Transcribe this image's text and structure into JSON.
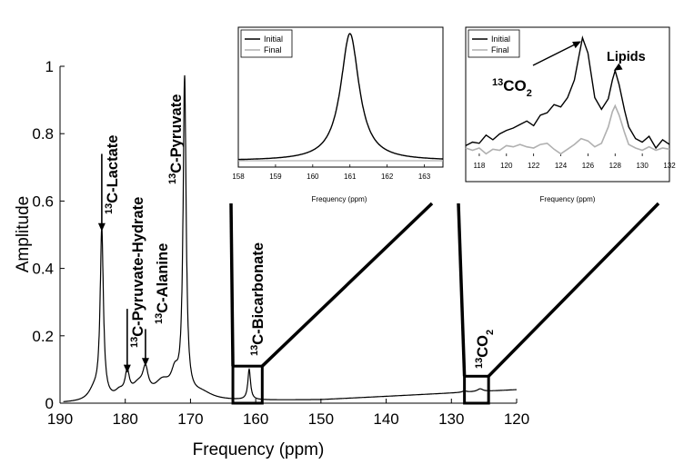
{
  "chart_data": [
    {
      "id": "main",
      "type": "line",
      "xlabel": "Frequency (ppm)",
      "ylabel": "Amplitude",
      "xlim": [
        190,
        120
      ],
      "ylim": [
        0,
        1
      ],
      "x_ticks": [
        190,
        180,
        170,
        160,
        150,
        140,
        130,
        120
      ],
      "y_ticks": [
        0,
        0.2,
        0.4,
        0.6,
        0.8,
        1
      ],
      "y_tick_labels": [
        "0",
        "0.2",
        "0.4",
        "0.6",
        "0.8",
        "1"
      ],
      "series": [
        {
          "name": "spectrum",
          "color": "#000000",
          "baseline": [
            [
              190,
              0.0
            ],
            [
              150,
              0.01
            ],
            [
              130,
              0.03
            ],
            [
              120,
              0.04
            ]
          ],
          "peaks": [
            {
              "x": 184.8,
              "h": 0.03,
              "w": 1.0
            },
            {
              "x": 183.6,
              "h": 0.5,
              "w": 0.3
            },
            {
              "x": 180.9,
              "h": 0.02,
              "w": 0.8
            },
            {
              "x": 179.7,
              "h": 0.07,
              "w": 0.4
            },
            {
              "x": 178.0,
              "h": 0.04,
              "w": 1.2
            },
            {
              "x": 176.9,
              "h": 0.07,
              "w": 0.5
            },
            {
              "x": 174.3,
              "h": 0.05,
              "w": 1.5
            },
            {
              "x": 172.4,
              "h": 0.06,
              "w": 0.7
            },
            {
              "x": 170.9,
              "h": 0.94,
              "w": 0.28
            },
            {
              "x": 168.3,
              "h": 0.02,
              "w": 2.0
            },
            {
              "x": 161.0,
              "h": 0.09,
              "w": 0.25
            },
            {
              "x": 125.6,
              "h": 0.008,
              "w": 0.5
            },
            {
              "x": 128.0,
              "h": 0.004,
              "w": 0.4
            }
          ]
        }
      ],
      "annotations": [
        {
          "id": "lactate",
          "pre": "13",
          "label": "C-Lactate",
          "arrow_x": 183.6,
          "arrow_from": 0.74,
          "arrow_to": 0.51
        },
        {
          "id": "pyruvate-hydrate",
          "pre": "13",
          "label": "C-Pyruvate-Hydrate",
          "arrow_x": 179.7,
          "arrow_from": 0.28,
          "arrow_to": 0.09
        },
        {
          "id": "alanine",
          "pre": "13",
          "label": "C-Alanine",
          "arrow_x": 176.9,
          "arrow_from": 0.22,
          "arrow_to": 0.11
        },
        {
          "id": "pyruvate",
          "pre": "13",
          "label": "C-Pyruvate"
        },
        {
          "id": "bicarbonate",
          "pre": "13",
          "label": "C-Bicarbonate"
        },
        {
          "id": "co2",
          "pre": "13",
          "label": "CO",
          "sub": "2"
        }
      ],
      "zoom_boxes": [
        {
          "id": "bicarbonate-box",
          "x": [
            163.5,
            159.0
          ],
          "y": [
            0.0,
            0.11
          ],
          "inset": "inset-bicarbonate"
        },
        {
          "id": "co2-box",
          "x": [
            128.0,
            124.3
          ],
          "y": [
            0.0,
            0.08
          ],
          "inset": "inset-co2"
        }
      ]
    },
    {
      "id": "inset-bicarbonate",
      "type": "line",
      "xlabel": "Frequency (ppm)",
      "xlim": [
        158,
        163.5
      ],
      "ylim": [
        -0.05,
        1.05
      ],
      "x_ticks": [
        158,
        159,
        160,
        161,
        162,
        163
      ],
      "legend": [
        "Initial",
        "Final"
      ],
      "legend_position": "top-left",
      "series": [
        {
          "name": "Initial",
          "color": "#000000",
          "peaks": [
            {
              "x": 161.0,
              "h": 1.0,
              "w": 0.3
            }
          ],
          "baseline": 0.0
        },
        {
          "name": "Final",
          "color": "#b0b0b0",
          "peaks": [],
          "baseline": 0.0
        }
      ]
    },
    {
      "id": "inset-co2",
      "type": "line",
      "xlabel": "Frequency (ppm)",
      "xlim": [
        117,
        132
      ],
      "ylim": [
        -0.05,
        1.05
      ],
      "x_ticks": [
        118,
        120,
        122,
        124,
        126,
        128,
        130,
        132
      ],
      "legend": [
        "Initial",
        "Final"
      ],
      "legend_position": "top-left",
      "series": [
        {
          "name": "Initial",
          "color": "#000000",
          "x": [
            117,
            117.5,
            118,
            118.5,
            119,
            119.5,
            120,
            120.5,
            121,
            121.5,
            122,
            122.5,
            123,
            123.5,
            124,
            124.5,
            125,
            125.3,
            125.6,
            126,
            126.5,
            127,
            127.5,
            127.8,
            128,
            128.3,
            128.7,
            129,
            129.5,
            130,
            130.5,
            131,
            131.5,
            132
          ],
          "y": [
            0.04,
            0.07,
            0.06,
            0.13,
            0.09,
            0.14,
            0.17,
            0.19,
            0.22,
            0.25,
            0.21,
            0.3,
            0.32,
            0.39,
            0.37,
            0.45,
            0.6,
            0.78,
            0.96,
            0.83,
            0.45,
            0.35,
            0.44,
            0.6,
            0.68,
            0.56,
            0.34,
            0.2,
            0.1,
            0.07,
            0.12,
            0.02,
            0.09,
            0.05
          ]
        },
        {
          "name": "Final",
          "color": "#b0b0b0",
          "x": [
            117,
            117.5,
            118,
            118.5,
            119,
            119.5,
            120,
            120.5,
            121,
            121.5,
            122,
            122.5,
            123,
            123.5,
            124,
            124.5,
            125,
            125.5,
            126,
            126.5,
            127,
            127.5,
            127.8,
            128,
            128.3,
            128.7,
            129,
            129.5,
            130,
            130.5,
            131,
            131.5,
            132
          ],
          "y": [
            0.02,
            0.0,
            0.02,
            -0.03,
            0.01,
            0.0,
            0.04,
            0.03,
            0.05,
            0.03,
            0.02,
            0.05,
            0.06,
            0.01,
            -0.03,
            0.01,
            0.05,
            0.1,
            0.08,
            0.03,
            0.06,
            0.2,
            0.33,
            0.38,
            0.3,
            0.15,
            0.05,
            0.02,
            0.0,
            0.03,
            0.0,
            0.02,
            0.01
          ]
        }
      ],
      "annotations": [
        {
          "id": "co2-inset-label",
          "pre": "13",
          "label": "CO",
          "sub": "2",
          "arrow_to": [
            125.5,
            0.93
          ]
        },
        {
          "id": "lipids",
          "label": "Lipids",
          "arrow_to": [
            127.9,
            0.68
          ]
        }
      ]
    }
  ]
}
